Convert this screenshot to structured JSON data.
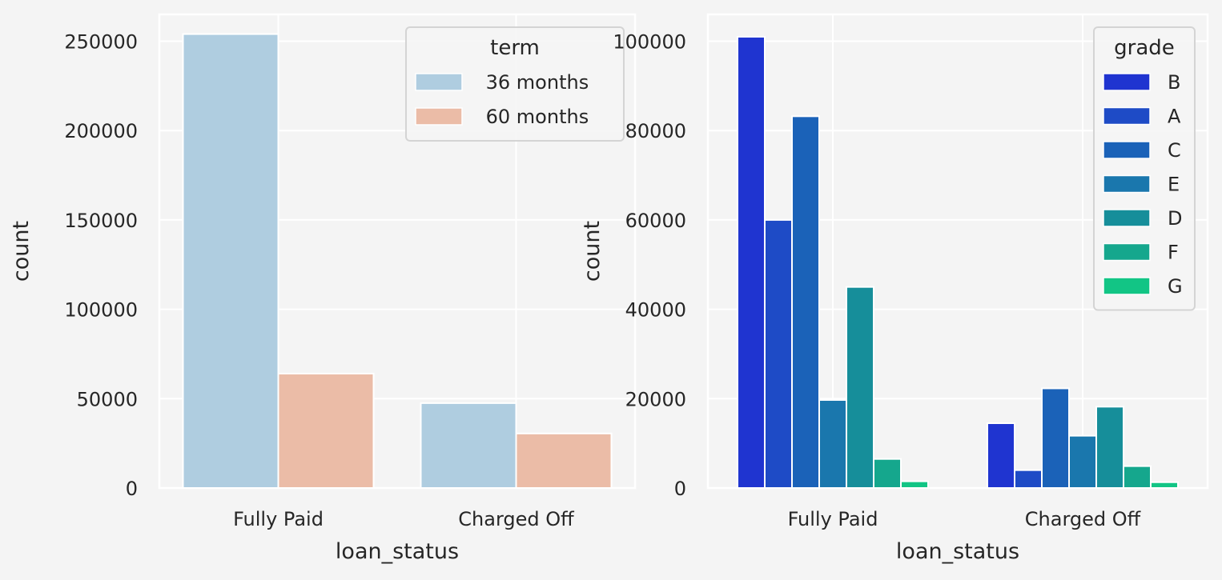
{
  "chart_data": [
    {
      "type": "bar",
      "xlabel": "loan_status",
      "ylabel": "count",
      "categories": [
        "Fully Paid",
        "Charged Off"
      ],
      "ylim": [
        0,
        265000
      ],
      "yticks": [
        0,
        50000,
        100000,
        150000,
        200000,
        250000
      ],
      "grid": true,
      "legend": {
        "title": "term",
        "placement": "upper-right"
      },
      "series": [
        {
          "name": " 36 months",
          "color": "#afcde0",
          "values": [
            254000,
            47500
          ]
        },
        {
          "name": " 60 months",
          "color": "#ebbca7",
          "values": [
            64000,
            30500
          ]
        }
      ]
    },
    {
      "type": "bar",
      "xlabel": "loan_status",
      "ylabel": "count",
      "categories": [
        "Fully Paid",
        "Charged Off"
      ],
      "ylim": [
        0,
        106000
      ],
      "yticks": [
        0,
        20000,
        40000,
        60000,
        80000,
        100000
      ],
      "grid": true,
      "legend": {
        "title": "grade",
        "placement": "upper-right"
      },
      "series": [
        {
          "name": "B",
          "color": "#1f34d0",
          "values": [
            101000,
            14500
          ]
        },
        {
          "name": "A",
          "color": "#1e4bc6",
          "values": [
            60000,
            4000
          ]
        },
        {
          "name": "C",
          "color": "#1b62b8",
          "values": [
            83200,
            22300
          ]
        },
        {
          "name": "E",
          "color": "#1a77ad",
          "values": [
            19700,
            11700
          ]
        },
        {
          "name": "D",
          "color": "#168e9a",
          "values": [
            45000,
            18200
          ]
        },
        {
          "name": "F",
          "color": "#15a78d",
          "values": [
            6500,
            4900
          ]
        },
        {
          "name": "G",
          "color": "#12c585",
          "values": [
            1500,
            1300
          ]
        }
      ]
    }
  ]
}
